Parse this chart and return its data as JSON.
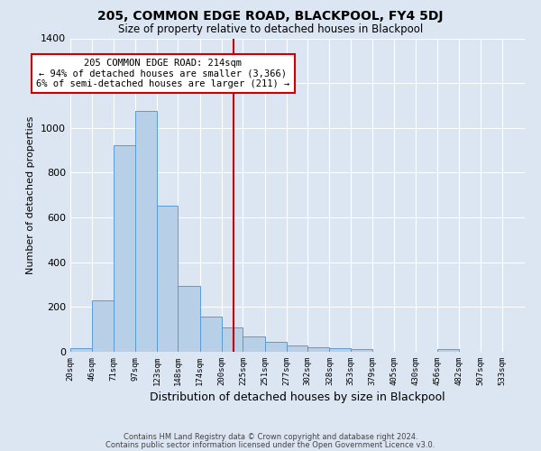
{
  "title": "205, COMMON EDGE ROAD, BLACKPOOL, FY4 5DJ",
  "subtitle": "Size of property relative to detached houses in Blackpool",
  "xlabel": "Distribution of detached houses by size in Blackpool",
  "ylabel": "Number of detached properties",
  "bar_labels": [
    "20sqm",
    "46sqm",
    "71sqm",
    "97sqm",
    "123sqm",
    "148sqm",
    "174sqm",
    "200sqm",
    "225sqm",
    "251sqm",
    "277sqm",
    "302sqm",
    "328sqm",
    "353sqm",
    "379sqm",
    "405sqm",
    "430sqm",
    "456sqm",
    "482sqm",
    "507sqm",
    "533sqm"
  ],
  "bar_values": [
    15,
    228,
    921,
    1075,
    652,
    293,
    157,
    107,
    70,
    45,
    28,
    20,
    18,
    11,
    0,
    0,
    0,
    14,
    0,
    0,
    0
  ],
  "bar_color": "#b8cfe8",
  "bar_edge_color": "#5a9bd5",
  "bg_color": "#dce6f3",
  "grid_color": "#ffffff",
  "property_line_x": 214,
  "label_vals": [
    20,
    46,
    71,
    97,
    123,
    148,
    174,
    200,
    225,
    251,
    277,
    302,
    328,
    353,
    379,
    405,
    430,
    456,
    482,
    507,
    533
  ],
  "annotation_title": "205 COMMON EDGE ROAD: 214sqm",
  "annotation_line1": "← 94% of detached houses are smaller (3,366)",
  "annotation_line2": "6% of semi-detached houses are larger (211) →",
  "annotation_box_color": "#ffffff",
  "annotation_border_color": "#cc0000",
  "vline_color": "#cc0000",
  "footer1": "Contains HM Land Registry data © Crown copyright and database right 2024.",
  "footer2": "Contains public sector information licensed under the Open Government Licence v3.0.",
  "ylim": [
    0,
    1400
  ],
  "yticks": [
    0,
    200,
    400,
    600,
    800,
    1000,
    1200,
    1400
  ],
  "xlim_left": 20,
  "xlim_right": 560
}
